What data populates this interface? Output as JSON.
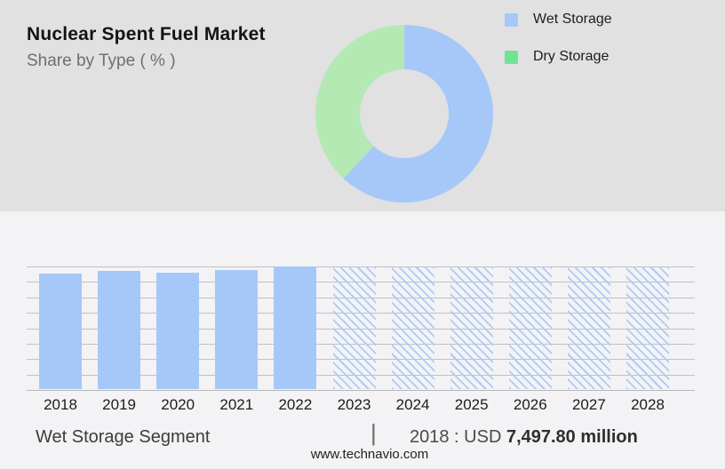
{
  "header": {
    "title": "Nuclear Spent Fuel Market",
    "subtitle": "Share by Type ( % )"
  },
  "legend": {
    "position": "top-right",
    "items": [
      {
        "label": "Wet Storage",
        "color": "#a6c8f8"
      },
      {
        "label": "Dry Storage",
        "color": "#70e494"
      }
    ]
  },
  "donut": {
    "segments": [
      {
        "name": "Wet Storage",
        "share_pct": 62,
        "color": "#a6c8f8"
      },
      {
        "name": "Dry Storage",
        "share_pct": 38,
        "color": "#b5e9b4"
      }
    ],
    "hole_ratio": 0.5
  },
  "chart_data": {
    "type": "bar",
    "title": "",
    "xlabel": "",
    "ylabel": "",
    "categories": [
      "2018",
      "2019",
      "2020",
      "2021",
      "2022",
      "2023",
      "2024",
      "2025",
      "2026",
      "2027",
      "2028"
    ],
    "series": [
      {
        "name": "Wet Storage market size (USD million, estimated from bar heights)",
        "values": [
          7497.8,
          7670,
          7555,
          7730,
          7955,
          7955,
          7955,
          7955,
          7955,
          7955,
          7955
        ]
      }
    ],
    "forecast_categories": [
      "2023",
      "2024",
      "2025",
      "2026",
      "2027",
      "2028"
    ],
    "known_point": {
      "year": "2018",
      "value_usd_million": 7497.8
    },
    "ylim": [
      0,
      7955
    ],
    "grid": true,
    "gridline_count": 9,
    "bar_color": "#a6c8f8",
    "hatch_color": "#aecbf5",
    "legend_position": "top-right"
  },
  "footer": {
    "segment_label": "Wet Storage Segment",
    "separator": "|",
    "value_prefix": "2018 : USD ",
    "value_bold": "7,497.80 million",
    "website": "www.technavio.com"
  },
  "colors": {
    "top_band_bg": "#e1e1e2",
    "bottom_bg": "#f3f3f5",
    "gridline": "#c1c1c3",
    "blue": "#a6c8f8",
    "donut_green": "#b5e9b4",
    "legend_green": "#70e494"
  }
}
